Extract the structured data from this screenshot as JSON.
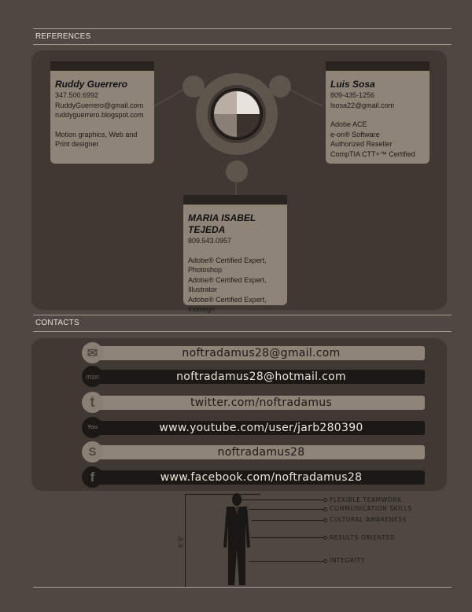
{
  "references": {
    "title": "REFERENCES",
    "people": [
      {
        "name": "Ruddy Guerrero",
        "lines": [
          "347.500.6992",
          "RuddyGuerrero@gmail.com",
          "ruddyguerrero.blogspot.com"
        ],
        "notes": [
          "Motion graphics, Web and",
          "Print designer"
        ]
      },
      {
        "name": "Luis Sosa",
        "lines": [
          "809-435-1256",
          "lsosa22@gmail.com"
        ],
        "notes": [
          "Adobe ACE",
          "e-on® Software",
          "Authorized Reseller",
          "CompTIA CTT+™ Certified"
        ]
      },
      {
        "name": "MARIA ISABEL TEJEDA",
        "lines": [
          "809.543.0957"
        ],
        "notes": [
          "Adobe® Certified Expert,",
          "Photoshop",
          "Adobe® Certified Expert,",
          "Illustrator",
          "Adobe® Certified Expert,",
          "Indesign"
        ]
      }
    ]
  },
  "contacts": {
    "title": "CONTACTS",
    "items": [
      {
        "icon": "email-icon",
        "glyph": "✉",
        "text": "noftradamus28@gmail.com"
      },
      {
        "icon": "msn-icon",
        "glyph": "msn",
        "text": "noftradamus28@hotmail.com"
      },
      {
        "icon": "twitter-icon",
        "glyph": "t",
        "text": "twitter.com/noftradamus"
      },
      {
        "icon": "youtube-icon",
        "glyph": "You",
        "text": "www.youtube.com/user/jarb280390"
      },
      {
        "icon": "skype-icon",
        "glyph": "S",
        "text": "noftradamus28"
      },
      {
        "icon": "facebook-icon",
        "glyph": "f",
        "text": "www.facebook.com/noftradamus28"
      }
    ]
  },
  "figure": {
    "height_label": "6' 0\"",
    "skills": [
      "FLEXIBLE TEAMWORK",
      "COMMUNICATION SKILLS",
      "CULTURAL AWARENESS",
      "RESULTS ORIENTED",
      "INTEGRITY"
    ]
  },
  "colors": {
    "background": "#4f4741",
    "panel": "#3f3833",
    "card": "#8f8478",
    "dark": "#1c1816"
  }
}
